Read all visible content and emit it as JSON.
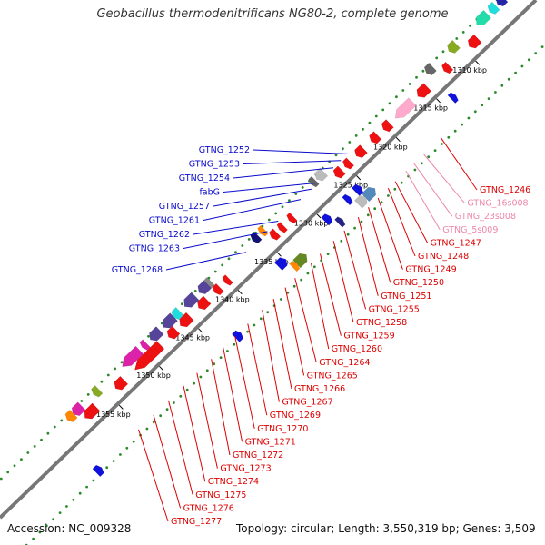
{
  "title": "Geobacillus thermodenitrificans NG80-2, complete genome",
  "accession": "Accession: NC_009328",
  "topology": "Topology: circular; Length: 3,550,319 bp; Genes: 3,509",
  "colors": {
    "backbone": "#777777",
    "dots": "#2a8a2a",
    "reverse_label": "#0a0acc",
    "forward_label": "#dd0000",
    "rna_label": "#ee88aa"
  },
  "ticks": [
    {
      "label": "1310 kbp",
      "t": 0.115
    },
    {
      "label": "1315 kbp",
      "t": 0.188
    },
    {
      "label": "1320 kbp",
      "t": 0.263
    },
    {
      "label": "1325 kbp",
      "t": 0.337
    },
    {
      "label": "1330 kbp",
      "t": 0.411
    },
    {
      "label": "1335 kbp",
      "t": 0.485
    },
    {
      "label": "1340 kbp",
      "t": 0.558
    },
    {
      "label": "1345 kbp",
      "t": 0.632
    },
    {
      "label": "1350 kbp",
      "t": 0.705
    },
    {
      "label": "1355 kbp",
      "t": 0.78
    }
  ],
  "reverse_labels": [
    {
      "text": "GTNG_1252",
      "t": 0.325
    },
    {
      "text": "GTNG_1253",
      "t": 0.338
    },
    {
      "text": "GTNG_1254",
      "t": 0.352
    },
    {
      "text": "fabG",
      "t": 0.381
    },
    {
      "text": "GTNG_1257",
      "t": 0.393
    },
    {
      "text": "GTNG_1261",
      "t": 0.413
    },
    {
      "text": "GTNG_1262",
      "t": 0.455
    },
    {
      "text": "GTNG_1263",
      "t": 0.475
    },
    {
      "text": "GTNG_1268",
      "t": 0.515
    }
  ],
  "forward_labels": [
    {
      "text": "GTNG_1246",
      "t": 0.22
    },
    {
      "text": "GTNG_16s008",
      "t": 0.252
    },
    {
      "text": "GTNG_23s008",
      "t": 0.27
    },
    {
      "text": "GTNG_5s009",
      "t": 0.285
    },
    {
      "text": "GTNG_1247",
      "t": 0.305
    },
    {
      "text": "GTNG_1248",
      "t": 0.318
    },
    {
      "text": "GTNG_1249",
      "t": 0.337
    },
    {
      "text": "GTNG_1250",
      "t": 0.355
    },
    {
      "text": "GTNG_1251",
      "t": 0.374
    },
    {
      "text": "GTNG_1255",
      "t": 0.4
    },
    {
      "text": "GTNG_1258",
      "t": 0.42
    },
    {
      "text": "GTNG_1259",
      "t": 0.445
    },
    {
      "text": "GTNG_1260",
      "t": 0.462
    },
    {
      "text": "GTNG_1264",
      "t": 0.492
    },
    {
      "text": "GTNG_1265",
      "t": 0.51
    },
    {
      "text": "GTNG_1266",
      "t": 0.532
    },
    {
      "text": "GTNG_1267",
      "t": 0.553
    },
    {
      "text": "GTNG_1269",
      "t": 0.58
    },
    {
      "text": "GTNG_1270",
      "t": 0.604
    },
    {
      "text": "GTNG_1271",
      "t": 0.626
    },
    {
      "text": "GTNG_1272",
      "t": 0.648
    },
    {
      "text": "GTNG_1273",
      "t": 0.675
    },
    {
      "text": "GTNG_1274",
      "t": 0.7
    },
    {
      "text": "GTNG_1275",
      "t": 0.728
    },
    {
      "text": "GTNG_1276",
      "t": 0.756
    },
    {
      "text": "GTNG_1277",
      "t": 0.784
    }
  ],
  "genes": [
    {
      "t": 0.035,
      "len": 0.012,
      "track": "fwd2",
      "color": "#2424aa"
    },
    {
      "t": 0.05,
      "len": 0.012,
      "track": "fwd2",
      "color": "#22dddd"
    },
    {
      "t": 0.07,
      "len": 0.02,
      "track": "fwd2",
      "color": "#22ddaa"
    },
    {
      "t": 0.1,
      "len": 0.016,
      "track": "fwd1",
      "color": "#ee1111"
    },
    {
      "t": 0.125,
      "len": 0.014,
      "track": "fwd2",
      "color": "#88aa22"
    },
    {
      "t": 0.15,
      "len": 0.01,
      "track": "fwd1",
      "color": "#ee1111"
    },
    {
      "t": 0.168,
      "len": 0.012,
      "track": "fwd2",
      "color": "#666666"
    },
    {
      "t": 0.195,
      "len": 0.018,
      "track": "fwd1",
      "color": "#ee1111"
    },
    {
      "t": 0.23,
      "len": 0.032,
      "track": "fwd1",
      "color": "#ffaacc"
    },
    {
      "t": 0.262,
      "len": 0.012,
      "track": "fwd1",
      "color": "#ee1111"
    },
    {
      "t": 0.285,
      "len": 0.012,
      "track": "fwd1",
      "color": "#ee1111"
    },
    {
      "t": 0.312,
      "len": 0.014,
      "track": "fwd1",
      "color": "#ee1111"
    },
    {
      "t": 0.335,
      "len": 0.01,
      "track": "fwd1",
      "color": "#ee1111"
    },
    {
      "t": 0.352,
      "len": 0.012,
      "track": "fwd1",
      "color": "#ee1111"
    },
    {
      "t": 0.372,
      "len": 0.014,
      "track": "fwd2",
      "color": "#bbbbbb"
    },
    {
      "t": 0.385,
      "len": 0.008,
      "track": "fwd2",
      "color": "#666666"
    },
    {
      "t": 0.44,
      "len": 0.008,
      "track": "fwd1",
      "color": "#ee1111"
    },
    {
      "t": 0.458,
      "len": 0.008,
      "track": "fwd1",
      "color": "#ee1111"
    },
    {
      "t": 0.472,
      "len": 0.01,
      "track": "fwd1",
      "color": "#ee1111"
    },
    {
      "t": 0.48,
      "len": 0.008,
      "track": "fwd2",
      "color": "#ff8800"
    },
    {
      "t": 0.493,
      "len": 0.01,
      "track": "fwd2",
      "color": "#111177"
    },
    {
      "t": 0.56,
      "len": 0.008,
      "track": "fwd1",
      "color": "#ee1111"
    },
    {
      "t": 0.578,
      "len": 0.01,
      "track": "fwd1",
      "color": "#ee1111"
    },
    {
      "t": 0.58,
      "len": 0.008,
      "track": "fwd2",
      "color": "#888888"
    },
    {
      "t": 0.59,
      "len": 0.016,
      "track": "fwd2",
      "color": "#554499"
    },
    {
      "t": 0.605,
      "len": 0.016,
      "track": "fwd1",
      "color": "#ee1111"
    },
    {
      "t": 0.615,
      "len": 0.02,
      "track": "fwd2",
      "color": "#554499"
    },
    {
      "t": 0.638,
      "len": 0.018,
      "track": "fwd1",
      "color": "#ee1111"
    },
    {
      "t": 0.64,
      "len": 0.012,
      "track": "fwd2",
      "color": "#22dddd"
    },
    {
      "t": 0.655,
      "len": 0.02,
      "track": "fwd2",
      "color": "#554499"
    },
    {
      "t": 0.662,
      "len": 0.014,
      "track": "fwd1",
      "color": "#ee1111"
    },
    {
      "t": 0.68,
      "len": 0.018,
      "track": "fwd2",
      "color": "#554499"
    },
    {
      "t": 0.69,
      "len": 0.012,
      "track": "fwd1",
      "color": "#ee1111"
    },
    {
      "t": 0.7,
      "len": 0.008,
      "track": "fwd2",
      "color": "#dd22aa"
    },
    {
      "t": 0.712,
      "len": 0.04,
      "track": "fwd1",
      "color": "#ee1111"
    },
    {
      "t": 0.725,
      "len": 0.032,
      "track": "fwd2",
      "color": "#dd22aa"
    },
    {
      "t": 0.76,
      "len": 0.016,
      "track": "fwd1",
      "color": "#ee1111"
    },
    {
      "t": 0.79,
      "len": 0.01,
      "track": "fwd2",
      "color": "#88aa22"
    },
    {
      "t": 0.808,
      "len": 0.008,
      "track": "fwd1",
      "color": "#ee1111"
    },
    {
      "t": 0.815,
      "len": 0.02,
      "track": "fwd1",
      "color": "#ee1111"
    },
    {
      "t": 0.825,
      "len": 0.016,
      "track": "fwd2",
      "color": "#dd22aa"
    },
    {
      "t": 0.838,
      "len": 0.012,
      "track": "fwd2",
      "color": "#ff8800"
    },
    {
      "t": 0.17,
      "len": 0.008,
      "track": "rev1",
      "color": "#1111dd"
    },
    {
      "t": 0.34,
      "len": 0.018,
      "track": "rev2",
      "color": "#5588bb"
    },
    {
      "t": 0.355,
      "len": 0.014,
      "track": "rev2",
      "color": "#bbbbbb"
    },
    {
      "t": 0.348,
      "len": 0.01,
      "track": "rev1",
      "color": "#1111dd"
    },
    {
      "t": 0.367,
      "len": 0.008,
      "track": "rev1",
      "color": "#1111dd"
    },
    {
      "t": 0.395,
      "len": 0.008,
      "track": "rev2",
      "color": "#222288"
    },
    {
      "t": 0.405,
      "len": 0.01,
      "track": "rev1",
      "color": "#1111dd"
    },
    {
      "t": 0.468,
      "len": 0.018,
      "track": "rev2",
      "color": "#668822"
    },
    {
      "t": 0.48,
      "len": 0.008,
      "track": "rev2",
      "color": "#ff8800"
    },
    {
      "t": 0.49,
      "len": 0.014,
      "track": "rev1",
      "color": "#1111dd"
    },
    {
      "t": 0.6,
      "len": 0.01,
      "track": "rev3",
      "color": "#1111dd"
    },
    {
      "t": 0.86,
      "len": 0.01,
      "track": "rev3",
      "color": "#1111dd"
    }
  ]
}
